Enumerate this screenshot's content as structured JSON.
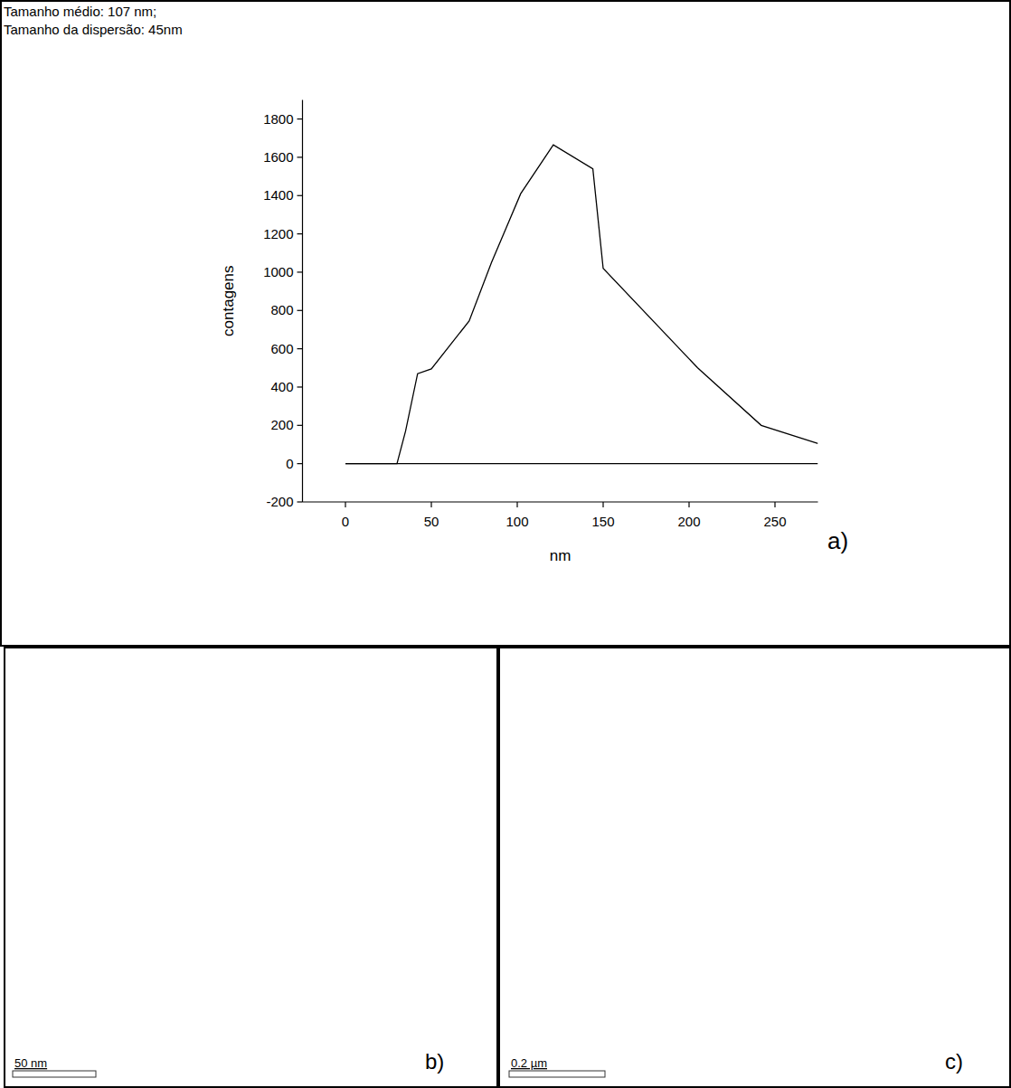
{
  "chart_data": {
    "type": "line",
    "annotations": [
      "Tamanho médio: 107 nm;",
      "Tamanho da dispersão: 45nm"
    ],
    "x_label": "nm",
    "y_label": "contagens",
    "series": [
      {
        "color": "#000000",
        "line_style": "solid",
        "x": [
          0,
          30,
          35,
          42,
          50,
          72,
          85,
          102,
          121,
          144,
          150,
          205,
          242,
          275
        ],
        "values": [
          0,
          0,
          170,
          470,
          495,
          745,
          1050,
          1410,
          1665,
          1540,
          1020,
          500,
          200,
          105
        ]
      },
      {
        "color": "#000000",
        "line_style": "solid",
        "x": [
          0,
          275
        ],
        "values": [
          0,
          0
        ]
      }
    ],
    "xlim": [
      -25,
      275
    ],
    "ylim": [
      -200,
      1900
    ],
    "xticks": [
      0,
      50,
      100,
      150,
      200,
      250
    ],
    "yticks": [
      -200,
      0,
      200,
      400,
      600,
      800,
      1000,
      1200,
      1400,
      1600,
      1800
    ],
    "grid": false
  },
  "chart_label": "a)",
  "images": [
    {
      "label": "b)",
      "scale_bar": "50 nm"
    },
    {
      "label": "c)",
      "scale_bar": "0.2 µm"
    }
  ]
}
